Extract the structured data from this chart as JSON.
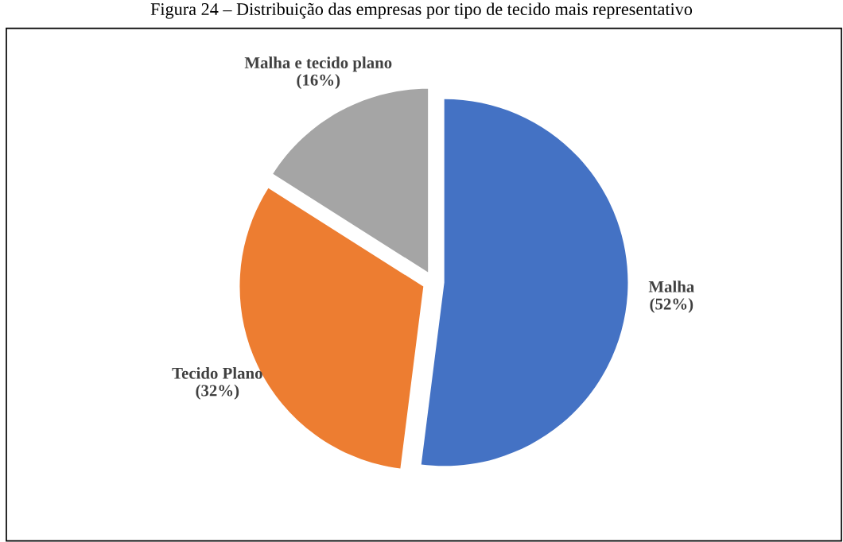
{
  "chart_data": {
    "type": "pie",
    "title": "Figura 24 – Distribuição das empresas por tipo de tecido mais representativo",
    "categories": [
      "Malha",
      "Tecido Plano",
      "Malha e tecido plano"
    ],
    "values": [
      52,
      32,
      16
    ],
    "value_labels": [
      "(52%)",
      "(32%)",
      "(16%)"
    ],
    "colors": [
      "#4472c4",
      "#ed7d31",
      "#a5a5a5"
    ],
    "legend": false
  }
}
